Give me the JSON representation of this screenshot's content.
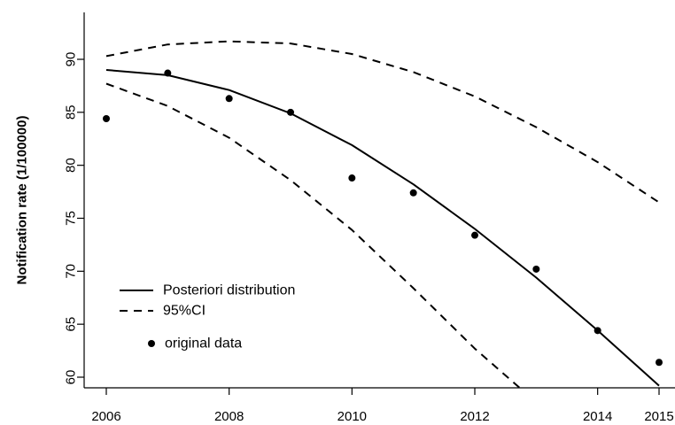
{
  "chart_data": {
    "type": "line",
    "title": "",
    "xlabel": "",
    "ylabel": "Notification rate (1/100000)",
    "xlim": [
      2005.7,
      2015.1
    ],
    "ylim": [
      59.2,
      93.3
    ],
    "xticks": [
      2006,
      2008,
      2010,
      2012,
      2014,
      2015
    ],
    "yticks": [
      60,
      65,
      70,
      75,
      80,
      85,
      90
    ],
    "grid": false,
    "legend_position": "bottom-left",
    "legend": [
      {
        "label": "Posteriori distribution",
        "style": "solid-line"
      },
      {
        "label": "95%CI",
        "style": "dashed-line"
      },
      {
        "label": "original data",
        "style": "point"
      }
    ],
    "series": [
      {
        "name": "Posteriori distribution",
        "style": "solid",
        "x": [
          2006,
          2007,
          2008,
          2009,
          2010,
          2011,
          2012,
          2013,
          2014,
          2015
        ],
        "y": [
          89.0,
          88.5,
          87.1,
          84.9,
          81.9,
          78.2,
          74.0,
          69.4,
          64.4,
          59.2
        ]
      },
      {
        "name": "95%CI",
        "style": "dashed",
        "x": [
          2006,
          2007,
          2008,
          2009,
          2010,
          2011,
          2012,
          2013,
          2014,
          2015
        ],
        "y": [
          90.3,
          91.4,
          91.7,
          91.5,
          90.5,
          88.8,
          86.5,
          83.6,
          80.3,
          76.5
        ]
      },
      {
        "name": "95%CI",
        "style": "dashed",
        "x": [
          2006,
          2007,
          2008,
          2009,
          2010,
          2011,
          2012,
          2012.75
        ],
        "y": [
          87.7,
          85.6,
          82.6,
          78.6,
          73.9,
          68.4,
          62.7,
          58.9
        ]
      },
      {
        "name": "original data",
        "style": "points",
        "x": [
          2006,
          2007,
          2008,
          2009,
          2010,
          2011,
          2012,
          2013,
          2014,
          2015
        ],
        "y": [
          84.4,
          88.7,
          86.3,
          85.0,
          78.8,
          77.4,
          73.4,
          70.2,
          64.4,
          61.4
        ]
      }
    ]
  }
}
